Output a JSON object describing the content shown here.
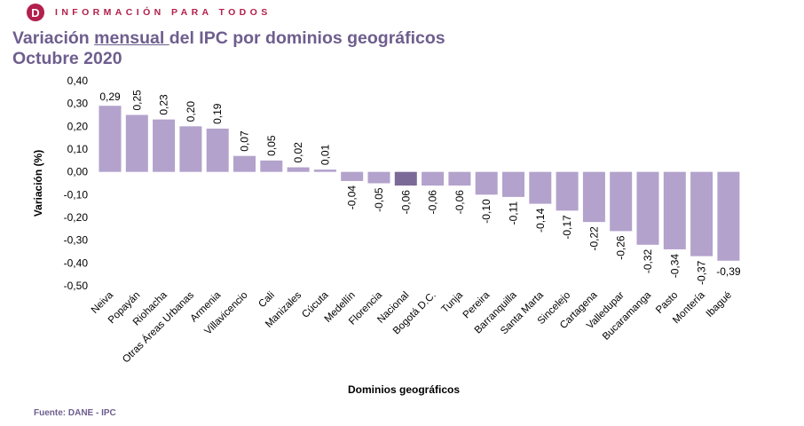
{
  "brand": {
    "logo_letter": "D",
    "tagline": "INFORMACIÓN PARA TODOS"
  },
  "title": {
    "part1": "Variación ",
    "underlined": "mensual ",
    "part2": "del IPC por dominios geográficos",
    "line2": "Octubre 2020"
  },
  "source": "Fuente: DANE - IPC",
  "colors": {
    "bar": "#b3a2cc",
    "highlight": "#7b6a98",
    "title": "#6e5e8e",
    "brand": "#b2204d"
  },
  "chart_data": {
    "type": "bar",
    "xlabel": "Dominios geográficos",
    "ylabel": "Variación (%)",
    "ylim": [
      -0.5,
      0.4
    ],
    "yticks": [
      "0,40",
      "0,30",
      "0,20",
      "0,10",
      "0,00",
      "-0,10",
      "-0,20",
      "-0,30",
      "-0,40",
      "-0,50"
    ],
    "highlight_category": "Nacional",
    "categories": [
      "Neiva",
      "Popayán",
      "Riohacha",
      "Otras Áreas Urbanas",
      "Armenia",
      "Villavicencio",
      "Cali",
      "Manizales",
      "Cúcuta",
      "Medellín",
      "Florencia",
      "Nacional",
      "Bogotá D.C.",
      "Tunja",
      "Pereira",
      "Barranquilla",
      "Santa Marta",
      "Sincelejo",
      "Cartagena",
      "Valledupar",
      "Bucaramanga",
      "Pasto",
      "Montería",
      "Ibagué"
    ],
    "values": [
      0.29,
      0.25,
      0.23,
      0.2,
      0.19,
      0.07,
      0.05,
      0.02,
      0.01,
      -0.04,
      -0.05,
      -0.06,
      -0.06,
      -0.06,
      -0.1,
      -0.11,
      -0.14,
      -0.17,
      -0.22,
      -0.26,
      -0.32,
      -0.34,
      -0.37,
      -0.39
    ],
    "value_labels": [
      "0,29",
      "0,25",
      "0,23",
      "0,20",
      "0,19",
      "0,07",
      "0,05",
      "0,02",
      "0,01",
      "-0,04",
      "-0,05",
      "-0,06",
      "-0,06",
      "-0,06",
      "-0,10",
      "-0,11",
      "-0,14",
      "-0,17",
      "-0,22",
      "-0,26",
      "-0,32",
      "-0,34",
      "-0,37",
      "-0,39"
    ]
  }
}
